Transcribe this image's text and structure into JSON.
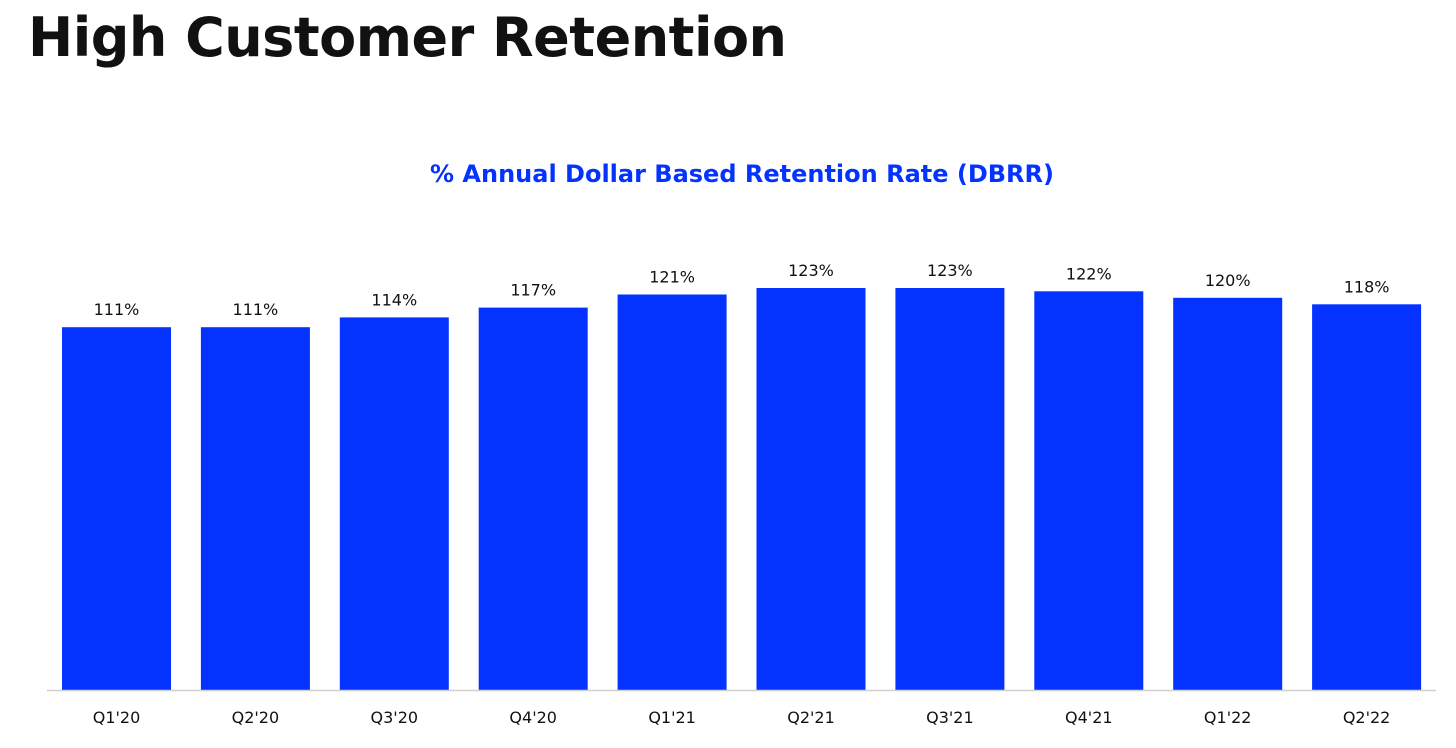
{
  "page": {
    "title": "High Customer Retention"
  },
  "colors": {
    "bar": "#0433FF",
    "title": "#0433FF",
    "text": "#111111",
    "axis": "#d0d0d0"
  },
  "chart_data": {
    "type": "bar",
    "title": "% Annual Dollar Based Retention Rate (DBRR)",
    "xlabel": "",
    "ylabel": "",
    "categories": [
      "Q1'20",
      "Q2'20",
      "Q3'20",
      "Q4'20",
      "Q1'21",
      "Q2'21",
      "Q3'21",
      "Q4'21",
      "Q1'22",
      "Q2'22"
    ],
    "values": [
      111,
      111,
      114,
      117,
      121,
      123,
      123,
      122,
      120,
      118
    ],
    "value_labels": [
      "111%",
      "111%",
      "114%",
      "117%",
      "121%",
      "123%",
      "123%",
      "122%",
      "120%",
      "118%"
    ],
    "ylim": [
      0,
      135
    ],
    "grid": false,
    "legend": "none"
  }
}
